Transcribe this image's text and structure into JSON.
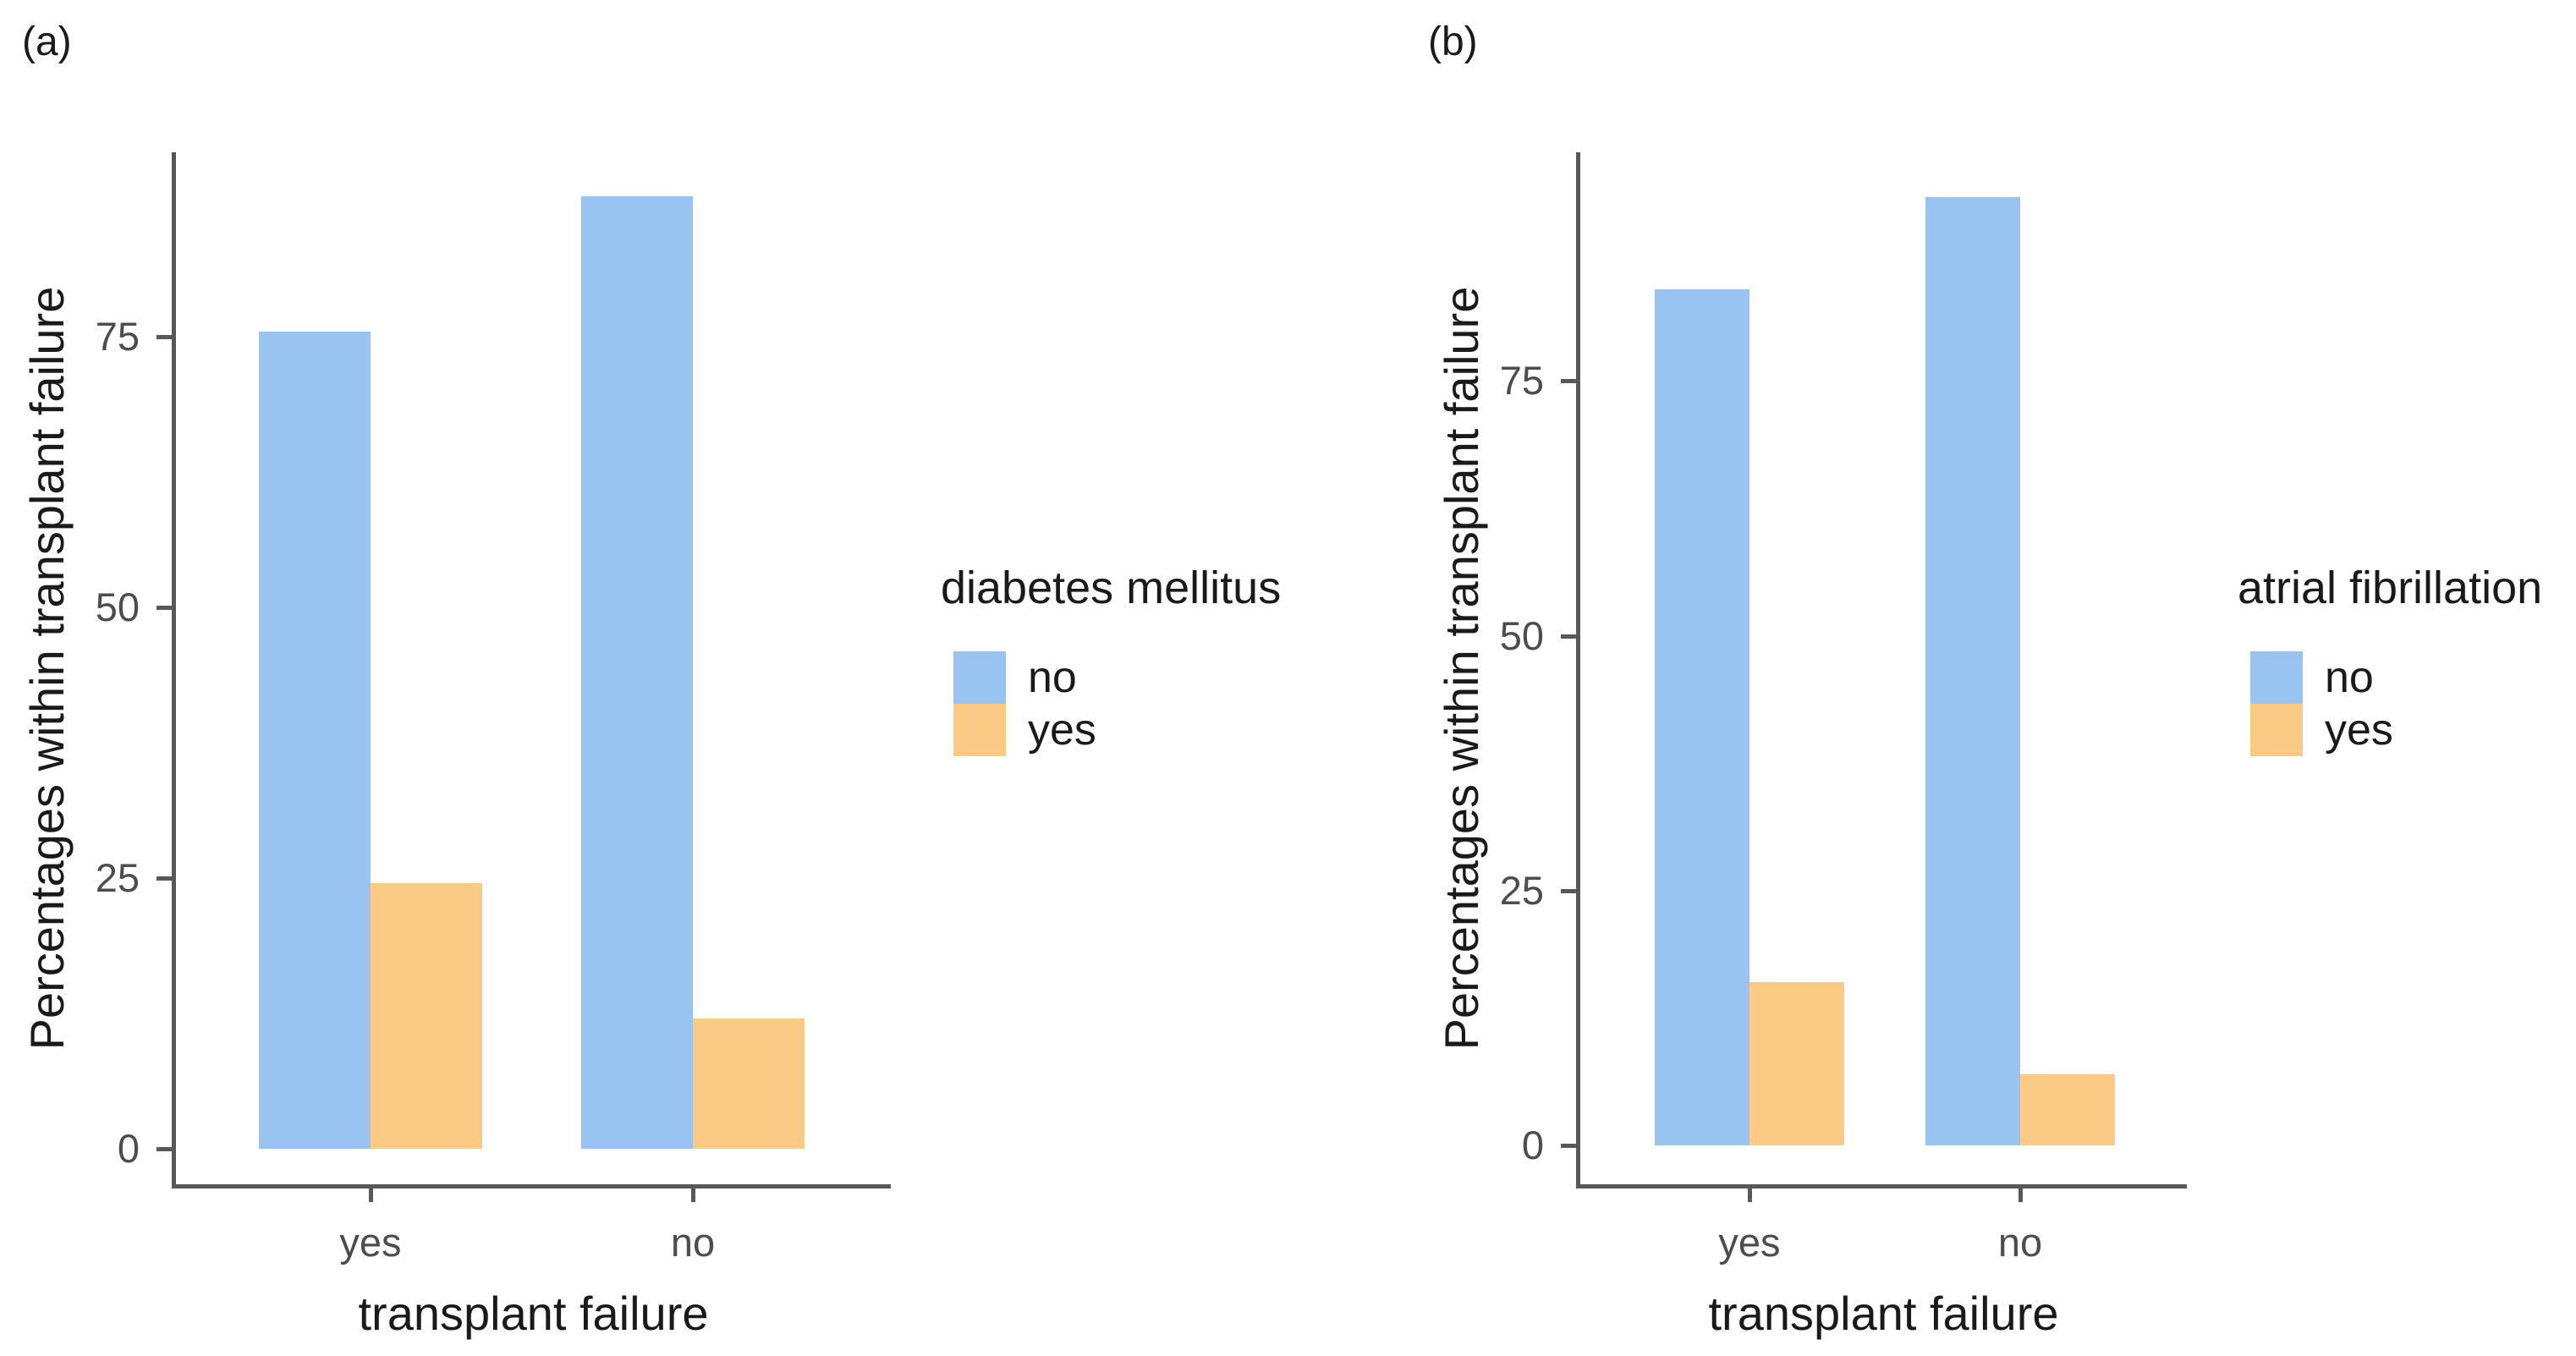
{
  "figure": {
    "background": "#ffffff",
    "axis_color": "#58585b",
    "tick_text_color": "#4d4d4d",
    "text_color": "#1a1a1a"
  },
  "chart_data": [
    {
      "panel_label": "(a)",
      "type": "bar",
      "grouping": "dodged",
      "categories": [
        "yes",
        "no"
      ],
      "series": [
        {
          "name": "no",
          "color": "#99c4f1",
          "values": [
            75.5,
            88
          ]
        },
        {
          "name": "yes",
          "color": "#fbca85",
          "values": [
            24.5,
            12
          ]
        }
      ],
      "legend_title": "diabetes mellitus",
      "legend_position": "right",
      "xlabel": "transplant failure",
      "ylabel": "Percentages within transplant failure",
      "yticks": [
        0,
        25,
        50,
        75
      ],
      "ylim": [
        0,
        95
      ],
      "grid": false
    },
    {
      "panel_label": "(b)",
      "type": "bar",
      "grouping": "dodged",
      "categories": [
        "yes",
        "no"
      ],
      "series": [
        {
          "name": "no",
          "color": "#99c4f1",
          "values": [
            84,
            93
          ]
        },
        {
          "name": "yes",
          "color": "#fbca85",
          "values": [
            16,
            7
          ]
        }
      ],
      "legend_title": "atrial fibrillation",
      "legend_position": "right",
      "xlabel": "transplant failure",
      "ylabel": "Percentages within transplant failure",
      "yticks": [
        0,
        25,
        50,
        75
      ],
      "ylim": [
        0,
        95
      ],
      "grid": false
    }
  ]
}
